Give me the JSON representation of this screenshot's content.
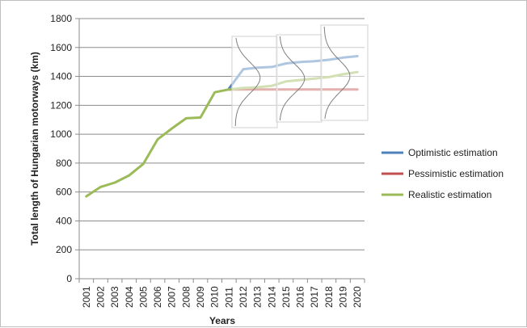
{
  "chart_data": {
    "type": "line",
    "title": "",
    "xlabel": "Years",
    "ylabel": "Total length of Hungarian motorways (km)",
    "ylim": [
      0,
      1800
    ],
    "yticks": [
      0,
      200,
      400,
      600,
      800,
      1000,
      1200,
      1400,
      1600,
      1800
    ],
    "grid": "horizontal",
    "legend_position": "right",
    "categories": [
      "2001",
      "2002",
      "2003",
      "2004",
      "2005",
      "2006",
      "2007",
      "2008",
      "2009",
      "2010",
      "2011",
      "2012",
      "2013",
      "2014",
      "2015",
      "2016",
      "2017",
      "2018",
      "2019",
      "2020"
    ],
    "series": [
      {
        "name": "Optimistic estimation",
        "color": "#4f81bd",
        "values": [
          null,
          null,
          null,
          null,
          null,
          null,
          null,
          null,
          null,
          null,
          1315,
          1450,
          1460,
          1465,
          1490,
          1500,
          1505,
          1515,
          1530,
          1540
        ]
      },
      {
        "name": "Pessimistic estimation",
        "color": "#c0504d",
        "values": [
          null,
          null,
          null,
          null,
          null,
          null,
          null,
          null,
          null,
          null,
          1310,
          1310,
          1310,
          1310,
          1310,
          1310,
          1310,
          1310,
          1310,
          1310
        ]
      },
      {
        "name": "Realistic estimation",
        "color": "#9bbb59",
        "values": [
          570,
          635,
          665,
          715,
          795,
          965,
          1040,
          1110,
          1115,
          1290,
          1310,
          1320,
          1325,
          1335,
          1365,
          1375,
          1385,
          1395,
          1415,
          1430
        ]
      }
    ],
    "overlay": {
      "type": "distribution-curves",
      "anchored_years": [
        "2012",
        "2015",
        "2018"
      ]
    }
  }
}
